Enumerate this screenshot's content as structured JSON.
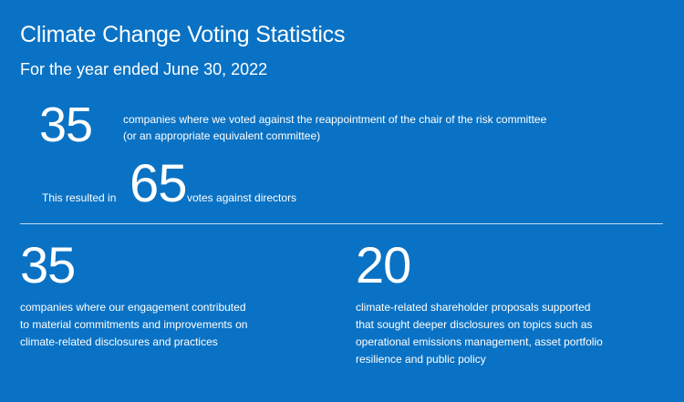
{
  "header": {
    "title": "Climate Change Voting Statistics",
    "subtitle": "For the year ended June 30, 2022"
  },
  "stat_risk_chair": {
    "value": "35",
    "lines": [
      "companies where we voted against the reappointment of the chair of the risk committee",
      "(or an appropriate equivalent committee)"
    ]
  },
  "stat_votes": {
    "prefix": "This resulted in",
    "value": "65",
    "suffix": "votes against directors"
  },
  "stat_engagement": {
    "value": "35",
    "lines": [
      "companies where our engagement contributed",
      "to material commitments and improvements on",
      "climate-related disclosures and practices"
    ]
  },
  "stat_proposals": {
    "value": "20",
    "lines": [
      "climate-related shareholder proposals supported",
      "that sought deeper disclosures on topics such as",
      "operational emissions management, asset portfolio",
      "resilience and public policy"
    ]
  },
  "colors": {
    "background": "#0a72c4",
    "text": "#ffffff"
  }
}
